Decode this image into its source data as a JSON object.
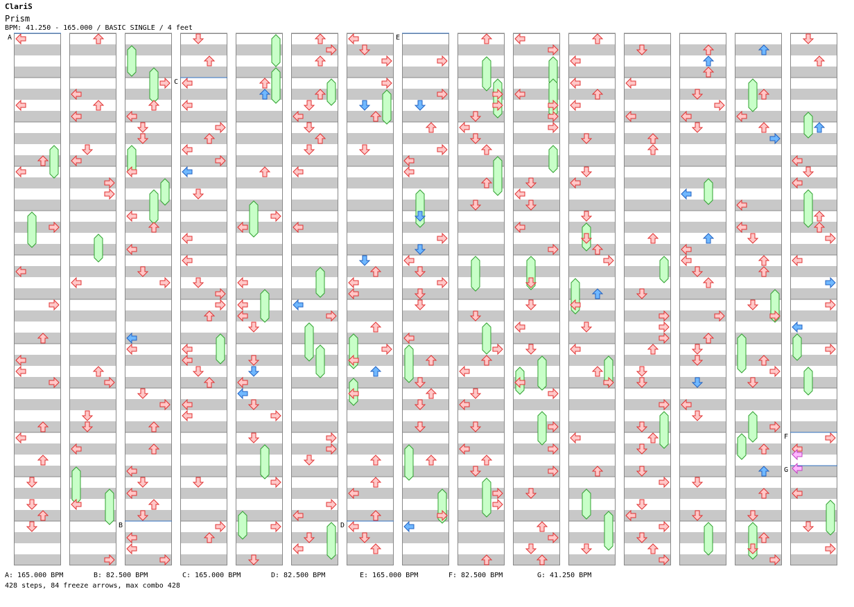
{
  "header": {
    "artist": "ClariS",
    "title": "Prism",
    "info": "BPM: 41.250 - 165.000 / BASIC SINGLE / 4 feet"
  },
  "colors": {
    "band": "#c8c8c8",
    "border": "#888888",
    "step_fill": "#ffc8c8",
    "step_stroke": "#e03030",
    "freeze_fill": "#c8ffc8",
    "freeze_stroke": "#30a030",
    "blue_fill": "#70b8ff",
    "blue_stroke": "#2060c0",
    "pink_fill": "#ffb8ff",
    "pink_stroke": "#c040c0",
    "marker_line": "#3070c0"
  },
  "bpm_markers": [
    {
      "label": "A",
      "column": 0,
      "measure": 0
    },
    {
      "label": "B",
      "column": 2,
      "measure": 11
    },
    {
      "label": "C",
      "column": 3,
      "measure": 1
    },
    {
      "label": "D",
      "column": 6,
      "measure": 11
    },
    {
      "label": "E",
      "column": 7,
      "measure": 0
    },
    {
      "label": "F",
      "column": 14,
      "measure": 9
    },
    {
      "label": "G",
      "column": 14,
      "measure": 9.75
    }
  ],
  "legend": [
    {
      "text": "A: 165.000 BPM"
    },
    {
      "text": "B: 82.500 BPM"
    },
    {
      "text": "C: 165.000 BPM"
    },
    {
      "text": "D: 82.500 BPM"
    },
    {
      "text": "E: 165.000 BPM"
    },
    {
      "text": "F: 82.500 BPM"
    },
    {
      "text": "G: 41.250 BPM"
    }
  ],
  "summary": "428 steps, 84 freeze arrows, max combo 428"
}
